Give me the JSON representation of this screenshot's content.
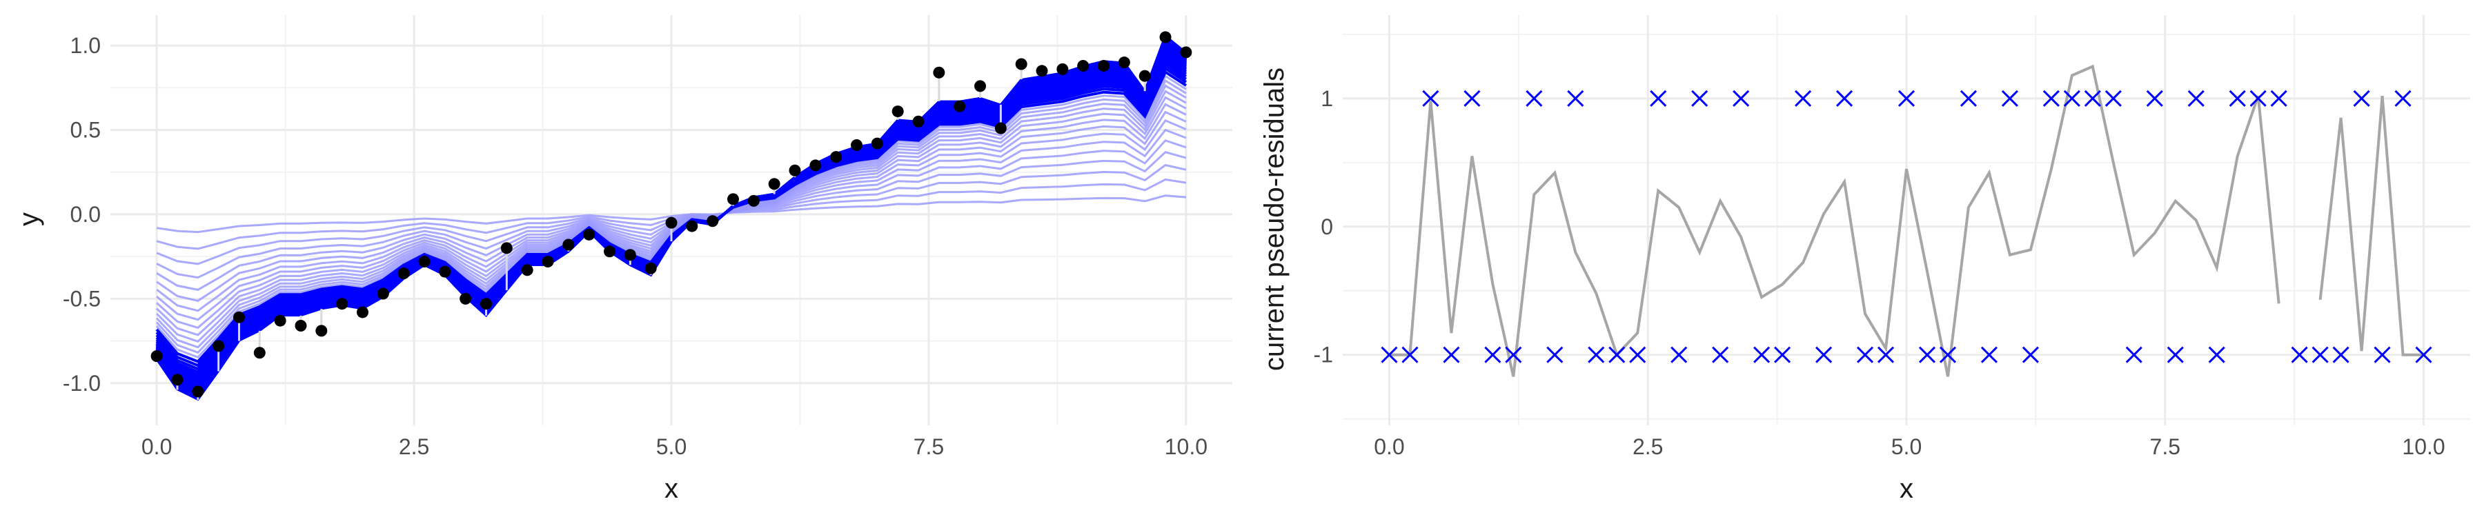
{
  "chart_data": [
    {
      "type": "line",
      "panel": "left",
      "xlabel": "x",
      "ylabel": "y",
      "xlim": [
        -0.45,
        10.45
      ],
      "ylim": [
        -1.25,
        1.18
      ],
      "x_ticks": [
        0,
        2.5,
        5,
        7.5,
        10
      ],
      "x_tick_labels": [
        "0.0",
        "2.5",
        "5.0",
        "7.5",
        "10.0"
      ],
      "y_ticks": [
        -1,
        -0.5,
        0,
        0.5,
        1
      ],
      "y_tick_labels": [
        "-1.0",
        "-0.5",
        "0.0",
        "0.5",
        "1.0"
      ],
      "grid": true,
      "colors": {
        "fit": "#0000ff",
        "fit_light": "#9a9aff",
        "points": "#000000",
        "residual": "#d9d9d9",
        "grid": "#ebebeb"
      },
      "observations": {
        "x": [
          0,
          0.2,
          0.4,
          0.6,
          0.8,
          1,
          1.2,
          1.4,
          1.6,
          1.8,
          2,
          2.2,
          2.4,
          2.6,
          2.8,
          3,
          3.2,
          3.4,
          3.6,
          3.8,
          4,
          4.2,
          4.4,
          4.6,
          4.8,
          5,
          5.2,
          5.4,
          5.6,
          5.8,
          6,
          6.2,
          6.4,
          6.6,
          6.8,
          7,
          7.2,
          7.4,
          7.6,
          7.8,
          8,
          8.2,
          8.4,
          8.6,
          8.8,
          9,
          9.2,
          9.4,
          9.6,
          9.8,
          10
        ],
        "y": [
          -0.84,
          -0.98,
          -1.05,
          -0.78,
          -0.61,
          -0.82,
          -0.63,
          -0.66,
          -0.69,
          -0.53,
          -0.58,
          -0.47,
          -0.35,
          -0.28,
          -0.34,
          -0.5,
          -0.53,
          -0.2,
          -0.33,
          -0.28,
          -0.18,
          -0.12,
          -0.22,
          -0.24,
          -0.32,
          -0.05,
          -0.07,
          -0.04,
          0.09,
          0.08,
          0.18,
          0.26,
          0.29,
          0.34,
          0.41,
          0.42,
          0.61,
          0.55,
          0.84,
          0.64,
          0.76,
          0.51,
          0.89,
          0.85,
          0.86,
          0.88,
          0.88,
          0.9,
          0.82,
          1.05,
          0.96
        ]
      },
      "fit_iterations": {
        "count": 50,
        "final_curve": [
          -0.86,
          -1.04,
          -1.1,
          -0.93,
          -0.75,
          -0.69,
          -0.6,
          -0.6,
          -0.56,
          -0.54,
          -0.56,
          -0.49,
          -0.38,
          -0.3,
          -0.36,
          -0.49,
          -0.6,
          -0.45,
          -0.3,
          -0.3,
          -0.22,
          -0.1,
          -0.22,
          -0.3,
          -0.36,
          -0.16,
          -0.04,
          -0.06,
          0.05,
          0.1,
          0.12,
          0.22,
          0.3,
          0.36,
          0.4,
          0.42,
          0.56,
          0.55,
          0.67,
          0.67,
          0.69,
          0.65,
          0.8,
          0.82,
          0.84,
          0.88,
          0.91,
          0.9,
          0.73,
          1.06,
          0.96
        ]
      }
    },
    {
      "type": "scatter",
      "panel": "right",
      "xlabel": "x",
      "ylabel": "current pseudo-residuals",
      "xlim": [
        -0.45,
        10.45
      ],
      "ylim": [
        -1.55,
        1.65
      ],
      "x_ticks": [
        0,
        2.5,
        5,
        7.5,
        10
      ],
      "x_tick_labels": [
        "0.0",
        "2.5",
        "5.0",
        "7.5",
        "10.0"
      ],
      "y_ticks": [
        -1,
        0,
        1
      ],
      "y_tick_labels": [
        "-1",
        "0",
        "1"
      ],
      "grid": true,
      "colors": {
        "markers": "#0000ff",
        "line": "#a6a6a6",
        "grid": "#ebebeb"
      },
      "pseudo_residuals": {
        "x": [
          0,
          0.2,
          0.4,
          0.6,
          0.8,
          1,
          1.2,
          1.4,
          1.6,
          1.8,
          2,
          2.2,
          2.4,
          2.6,
          2.8,
          3,
          3.2,
          3.4,
          3.6,
          3.8,
          4,
          4.2,
          4.4,
          4.6,
          4.8,
          5,
          5.2,
          5.4,
          5.6,
          5.8,
          6,
          6.2,
          6.4,
          6.6,
          6.8,
          7,
          7.2,
          7.4,
          7.6,
          7.8,
          8,
          8.2,
          8.4,
          8.6,
          8.8,
          9,
          9.2,
          9.4,
          9.6,
          9.8,
          10
        ],
        "y": [
          -1,
          -1,
          1,
          -1,
          1,
          -1,
          -1,
          1,
          -1,
          1,
          -1,
          -1,
          -1,
          1,
          -1,
          1,
          -1,
          1,
          -1,
          -1,
          1,
          -1,
          1,
          -1,
          -1,
          1,
          -1,
          -1,
          1,
          -1,
          1,
          -1,
          1,
          1,
          1,
          1,
          -1,
          1,
          -1,
          1,
          -1,
          1,
          1,
          1,
          -1,
          -1,
          -1,
          1,
          -1,
          1,
          -1
        ]
      },
      "current_fit_residuals": {
        "x": [
          0,
          0.2,
          0.4,
          0.6,
          0.8,
          1,
          1.2,
          1.4,
          1.6,
          1.8,
          2,
          2.2,
          2.4,
          2.6,
          2.8,
          3,
          3.2,
          3.4,
          3.6,
          3.8,
          4,
          4.2,
          4.4,
          4.6,
          4.8,
          5,
          5.2,
          5.4,
          5.6,
          5.8,
          6,
          6.2,
          6.4,
          6.6,
          6.8,
          7,
          7.2,
          7.4,
          7.6,
          7.8,
          8,
          8.2,
          8.4,
          8.6,
          8.8,
          9,
          9.2,
          9.4,
          9.6,
          9.8,
          10
        ],
        "y": [
          -1,
          -1,
          0.98,
          -0.83,
          0.55,
          -0.45,
          -1.17,
          0.25,
          0.42,
          -0.2,
          -0.52,
          -1,
          -0.83,
          0.28,
          0.15,
          -0.2,
          0.2,
          -0.08,
          -0.55,
          -0.45,
          -0.28,
          0.1,
          0.35,
          -0.68,
          -0.95,
          0.45,
          -0.35,
          -1.17,
          0.15,
          0.42,
          -0.22,
          -0.18,
          0.45,
          1.18,
          1.25,
          0.5,
          -0.22,
          -0.05,
          0.2,
          0.05,
          -0.32,
          0.55,
          1.02,
          -0.6,
          null,
          -0.57,
          0.85,
          -0.97,
          1.02,
          -1,
          -1
        ]
      }
    }
  ]
}
